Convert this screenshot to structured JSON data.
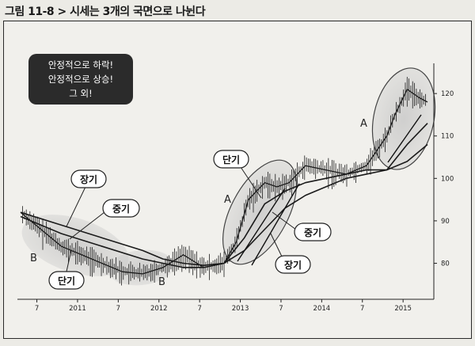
{
  "caption": "그림 11-8 > 시세는 3개의 국면으로 나뉜다",
  "note_box": {
    "lines": [
      "안정적으로 하락!",
      "안정적으로 상승!",
      "그 외!"
    ]
  },
  "callouts": {
    "long_left": "장기",
    "mid_left": "중기",
    "short_left": "단기",
    "short_mid": "단기",
    "mid_right": "중기",
    "long_right": "장기"
  },
  "phase_labels": {
    "b1": "B",
    "b2": "B",
    "a1": "A",
    "a2": "A"
  },
  "colors": {
    "price": "#1a1a1a",
    "ellipse": "#c9c9c9",
    "note_box_bg": "#2b2b2b",
    "callout_bg": "#ffffff"
  },
  "chart_data": {
    "type": "line",
    "title": "",
    "x_ticks": [
      "7",
      "2011",
      "7",
      "2012",
      "7",
      "2013",
      "7",
      "2014",
      "7",
      "2015"
    ],
    "y_ticks": [
      80,
      90,
      100,
      110,
      120
    ],
    "ylim": [
      73,
      126
    ],
    "series": [
      {
        "name": "",
        "x": [
          0,
          0.5,
          1,
          1.5,
          2,
          2.5,
          3,
          3.5,
          4,
          4.5,
          5,
          5.3,
          5.6,
          6,
          6.3,
          6.6,
          7,
          7.5,
          8,
          8.5,
          9,
          9.2,
          9.5,
          9.8,
          10
        ],
        "y": [
          92,
          88,
          84,
          82,
          80,
          78,
          77.5,
          79,
          82,
          79,
          80,
          85,
          95,
          99,
          98,
          99,
          103,
          102,
          101,
          103,
          110,
          115,
          121,
          119,
          118
        ]
      },
      {
        "name": "",
        "x": [
          0,
          1,
          2,
          3,
          3.5,
          4,
          4.5,
          5,
          5.5,
          6,
          6.5,
          7,
          7.5,
          8,
          8.5,
          9,
          9.5,
          10
        ],
        "y": [
          91,
          87,
          84,
          81,
          80,
          79,
          79,
          80,
          86,
          94,
          97,
          99,
          100,
          101,
          102,
          102,
          108,
          113
        ]
      },
      {
        "name": "",
        "x": [
          0,
          1,
          2,
          3,
          3.5,
          4,
          4.5,
          5,
          5.5,
          6,
          6.5,
          7,
          7.5,
          8,
          8.5,
          9,
          9.5,
          10
        ],
        "y": [
          92,
          89,
          86,
          83,
          81,
          80,
          79.5,
          80,
          83,
          88,
          93,
          96,
          98,
          100,
          101,
          102,
          104,
          108
        ]
      }
    ]
  }
}
